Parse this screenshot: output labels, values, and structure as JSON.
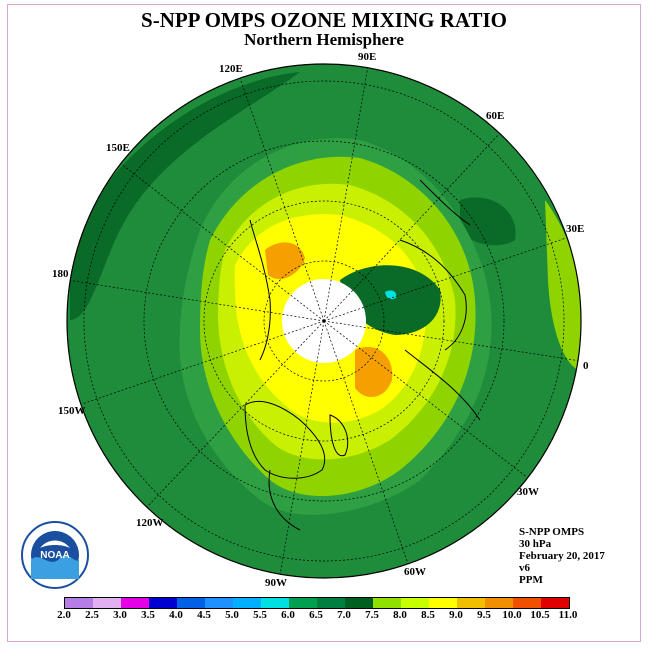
{
  "title": "S-NPP OMPS OZONE MIXING RATIO",
  "subtitle": "Northern Hemisphere",
  "longitude_labels": [
    "90E",
    "60E",
    "30E",
    "0",
    "30W",
    "60W",
    "90W",
    "120W",
    "150W",
    "180",
    "150E",
    "120E"
  ],
  "info": {
    "instrument": "S-NPP OMPS",
    "level": "30 hPa",
    "date": "February 20, 2017",
    "version": "v6",
    "units": "PPM"
  },
  "logo": {
    "icon": "noaa-logo",
    "text": "NOAA"
  },
  "colorbar": {
    "labels": [
      "2.0",
      "2.5",
      "3.0",
      "3.5",
      "4.0",
      "4.5",
      "5.0",
      "5.5",
      "6.0",
      "6.5",
      "7.0",
      "7.5",
      "8.0",
      "8.5",
      "9.0",
      "9.5",
      "10.0",
      "10.5",
      "11.0"
    ],
    "colors": [
      "#b57de6",
      "#e0b0f0",
      "#e600e6",
      "#0000d0",
      "#0060e6",
      "#1e90ff",
      "#00b0ff",
      "#00e0e0",
      "#00a050",
      "#008040",
      "#006020",
      "#90e000",
      "#c8ff00",
      "#ffff00",
      "#f0c000",
      "#f09000",
      "#f05000",
      "#e00000",
      "#805030"
    ]
  },
  "map_colors": {
    "dark_green": "#1e8c3a",
    "darker_green": "#0a6a28",
    "mid_green": "#2ea043",
    "light_green": "#8fd400",
    "yellow_green": "#c8f000",
    "yellow": "#ffff00",
    "orange": "#f5a000",
    "pole_white": "#ffffff"
  }
}
